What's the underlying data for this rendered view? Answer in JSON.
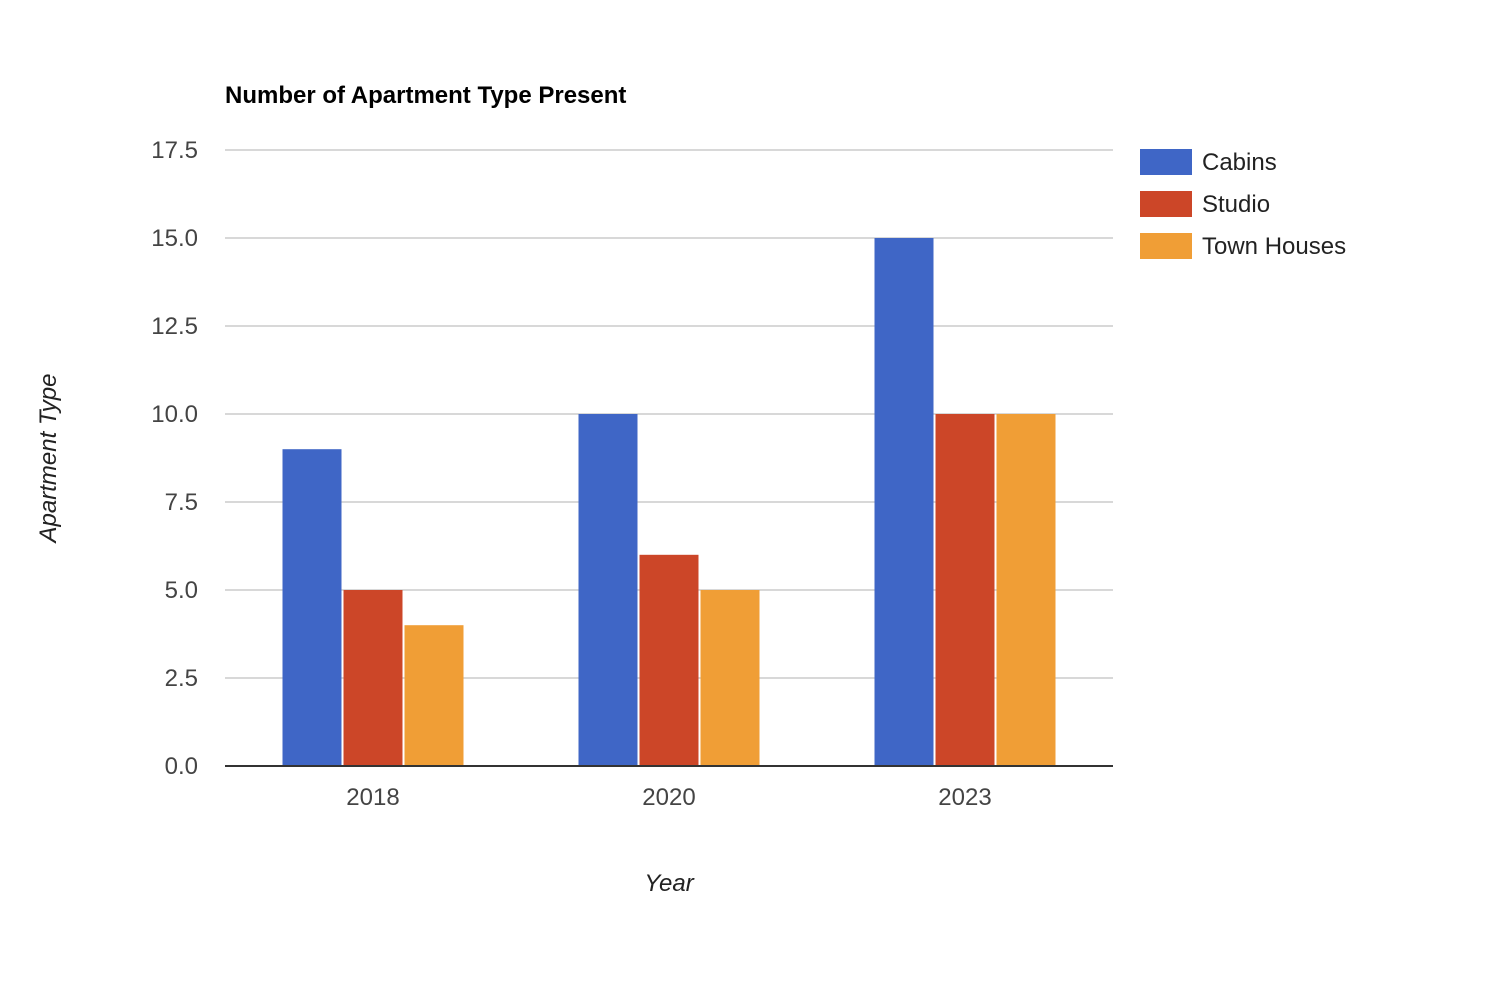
{
  "chart_data": {
    "type": "bar",
    "title": "Number of Apartment Type Present",
    "xlabel": "Year",
    "ylabel": "Apartment Type",
    "categories": [
      "2018",
      "2020",
      "2023"
    ],
    "series": [
      {
        "name": "Cabins",
        "values": [
          9,
          10,
          15
        ],
        "color": "#3f66c6"
      },
      {
        "name": "Studio",
        "values": [
          5,
          6,
          10
        ],
        "color": "#cc4628"
      },
      {
        "name": "Town Houses",
        "values": [
          4,
          5,
          10
        ],
        "color": "#f09e36"
      }
    ],
    "ylim": [
      0,
      17.5
    ],
    "yticks": [
      "0.0",
      "2.5",
      "5.0",
      "7.5",
      "10.0",
      "12.5",
      "15.0",
      "17.5"
    ],
    "grid": true,
    "legend_position": "right"
  }
}
